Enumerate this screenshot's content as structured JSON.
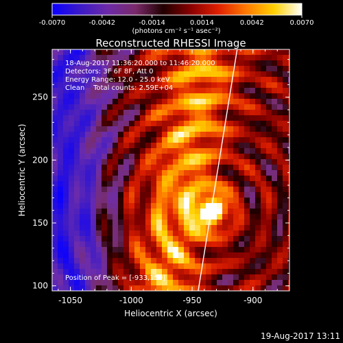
{
  "chart_data": {
    "type": "heatmap",
    "title": "Reconstructed RHESSI Image",
    "colorbar": {
      "ticks": [
        "-0.0070",
        "-0.0042",
        "-0.0014",
        "0.0014",
        "0.0042",
        "0.0070"
      ],
      "range": [
        -0.007,
        0.007
      ],
      "unit_label": "(photons cm⁻² s⁻¹ asec⁻²)",
      "colors": [
        "#0a00ff",
        "#3b1ac8",
        "#6c2aa8",
        "#7a2a6a",
        "#200000",
        "#8a0000",
        "#e02000",
        "#ff7a00",
        "#ffd000",
        "#ffffff"
      ]
    },
    "annotations": [
      "18-Aug-2017 11:36:20.000 to 11:46:20.000",
      "Detectors: 3F 6F 8F, Att 0",
      "Energy Range: 12.0 - 25.0 keV",
      "Clean    Total counts: 2.59E+04"
    ],
    "peak_label": "Position of Peak = [-933,159]",
    "peak": {
      "x": -933,
      "y": 159
    },
    "xlabel": "Heliocentric X (arcsec)",
    "ylabel": "Heliocentric Y (arcsec)",
    "x_ticks": [
      "-1050",
      "-1000",
      "-950",
      "-900"
    ],
    "y_ticks": [
      "100",
      "150",
      "200",
      "250"
    ],
    "xlim": [
      -1065,
      -870
    ],
    "ylim": [
      96,
      288
    ],
    "limb_line": [
      {
        "x": -945,
        "y": 96
      },
      {
        "x": -913,
        "y": 288
      }
    ]
  },
  "footer": {
    "date": "19-Aug-2017 13:11"
  }
}
